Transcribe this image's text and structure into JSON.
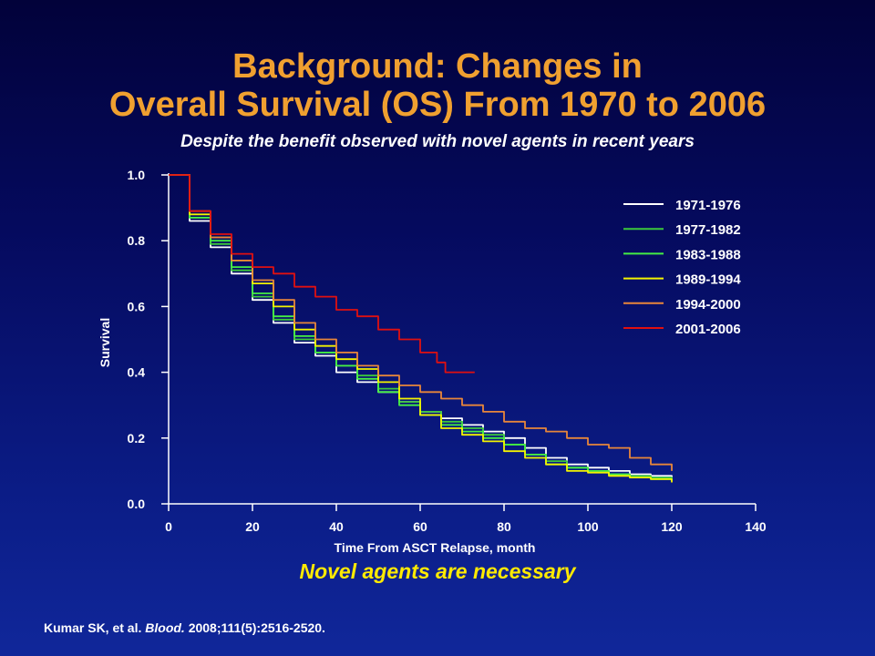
{
  "slide": {
    "title_line1": "Background: Changes in",
    "title_line2": "Overall Survival (OS) From 1970 to 2006",
    "subtitle": "Despite the benefit observed with novel agents in recent years",
    "callout": "Novel agents are necessary",
    "citation": {
      "authors": "Kumar SK, et al.",
      "journal": "Blood.",
      "details": "2008;111(5):2516-2520."
    }
  },
  "chart_data": {
    "type": "line",
    "title": "",
    "xlabel": "Time From ASCT Relapse, month",
    "ylabel": "Survival",
    "xlim": [
      0,
      140
    ],
    "ylim": [
      0,
      1.0
    ],
    "xticks": [
      0,
      20,
      40,
      60,
      80,
      100,
      120,
      140
    ],
    "yticks": [
      0.0,
      0.2,
      0.4,
      0.6,
      0.8,
      1.0
    ],
    "ytick_labels": [
      "0.0",
      "0.2",
      "0.4",
      "0.6",
      "0.8",
      "1.0"
    ],
    "grid": false,
    "legend_position": "top-right",
    "series": [
      {
        "name": "1971-1976",
        "color": "#ffffff",
        "x": [
          0,
          5,
          10,
          15,
          20,
          25,
          30,
          35,
          40,
          45,
          50,
          55,
          60,
          65,
          70,
          75,
          80,
          85,
          90,
          95,
          100,
          105,
          110,
          115,
          120
        ],
        "y": [
          1.0,
          0.86,
          0.78,
          0.7,
          0.62,
          0.55,
          0.49,
          0.45,
          0.4,
          0.37,
          0.34,
          0.31,
          0.28,
          0.26,
          0.24,
          0.22,
          0.2,
          0.17,
          0.14,
          0.12,
          0.11,
          0.1,
          0.09,
          0.085,
          0.08
        ]
      },
      {
        "name": "1977-1982",
        "color": "#3cc83c",
        "x": [
          0,
          5,
          10,
          15,
          20,
          25,
          30,
          35,
          40,
          45,
          50,
          55,
          60,
          65,
          70,
          75,
          80,
          85,
          90,
          95,
          100,
          105,
          110,
          115,
          120
        ],
        "y": [
          1.0,
          0.87,
          0.79,
          0.71,
          0.63,
          0.56,
          0.5,
          0.46,
          0.42,
          0.39,
          0.35,
          0.31,
          0.28,
          0.25,
          0.23,
          0.21,
          0.18,
          0.15,
          0.13,
          0.11,
          0.1,
          0.09,
          0.085,
          0.08,
          0.07
        ]
      },
      {
        "name": "1983-1988",
        "color": "#44ee44",
        "x": [
          0,
          5,
          10,
          15,
          20,
          25,
          30,
          35,
          40,
          45,
          50,
          55,
          60,
          65,
          70,
          75,
          80,
          85,
          90,
          95,
          100,
          105,
          110,
          115,
          120
        ],
        "y": [
          1.0,
          0.87,
          0.8,
          0.72,
          0.64,
          0.57,
          0.51,
          0.46,
          0.42,
          0.38,
          0.34,
          0.3,
          0.27,
          0.24,
          0.22,
          0.2,
          0.18,
          0.15,
          0.12,
          0.11,
          0.1,
          0.09,
          0.08,
          0.075,
          0.07
        ]
      },
      {
        "name": "1989-1994",
        "color": "#f4f400",
        "x": [
          0,
          5,
          10,
          15,
          20,
          25,
          30,
          35,
          40,
          45,
          50,
          55,
          60,
          65,
          70,
          75,
          80,
          85,
          90,
          95,
          100,
          105,
          110,
          115,
          120
        ],
        "y": [
          1.0,
          0.88,
          0.81,
          0.74,
          0.67,
          0.6,
          0.53,
          0.48,
          0.44,
          0.41,
          0.37,
          0.32,
          0.27,
          0.23,
          0.21,
          0.19,
          0.16,
          0.14,
          0.12,
          0.1,
          0.095,
          0.085,
          0.08,
          0.075,
          0.065
        ]
      },
      {
        "name": "1994-2000",
        "color": "#e8863a",
        "x": [
          0,
          5,
          10,
          15,
          20,
          25,
          30,
          35,
          40,
          45,
          50,
          55,
          60,
          65,
          70,
          75,
          80,
          85,
          90,
          95,
          100,
          105,
          110,
          115,
          120
        ],
        "y": [
          1.0,
          0.89,
          0.81,
          0.74,
          0.68,
          0.62,
          0.55,
          0.5,
          0.46,
          0.42,
          0.39,
          0.36,
          0.34,
          0.32,
          0.3,
          0.28,
          0.25,
          0.23,
          0.22,
          0.2,
          0.18,
          0.17,
          0.14,
          0.12,
          0.1
        ]
      },
      {
        "name": "2001-2006",
        "color": "#e01010",
        "x": [
          0,
          5,
          10,
          15,
          20,
          25,
          30,
          35,
          40,
          45,
          50,
          52,
          55,
          60,
          62,
          64,
          66,
          70,
          73
        ],
        "y": [
          1.0,
          0.89,
          0.82,
          0.76,
          0.72,
          0.7,
          0.66,
          0.63,
          0.59,
          0.57,
          0.53,
          0.53,
          0.5,
          0.46,
          0.46,
          0.43,
          0.4,
          0.4,
          0.4
        ]
      }
    ]
  }
}
